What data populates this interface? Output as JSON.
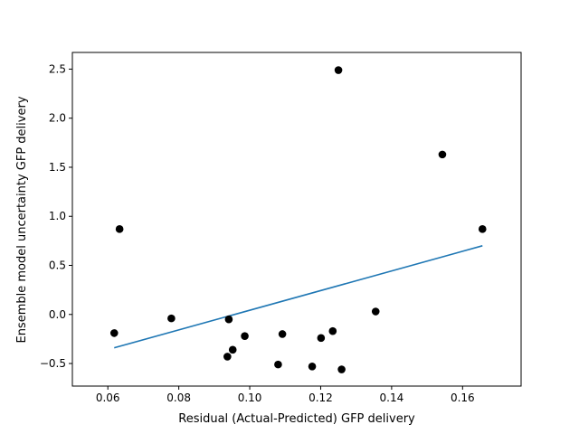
{
  "chart_data": {
    "type": "scatter",
    "title": "",
    "xlabel": "Residual (Actual-Predicted) GFP delivery",
    "ylabel": "Ensemble model uncertainty GFP delivery",
    "xlim": [
      0.05,
      0.1765
    ],
    "ylim": [
      -0.73,
      2.67
    ],
    "xticks": [
      "0.06",
      "0.08",
      "0.10",
      "0.12",
      "0.14",
      "0.16"
    ],
    "yticks": [
      "−0.5",
      "0.0",
      "0.5",
      "1.0",
      "1.5",
      "2.0",
      "2.5"
    ],
    "grid": false,
    "legend": "none",
    "colors": {
      "points": "#000000",
      "line": "#1f77b4"
    },
    "points": [
      {
        "x": 0.0618,
        "y": -0.19
      },
      {
        "x": 0.0633,
        "y": 0.87
      },
      {
        "x": 0.0779,
        "y": -0.04
      },
      {
        "x": 0.0937,
        "y": -0.43
      },
      {
        "x": 0.0941,
        "y": -0.05
      },
      {
        "x": 0.0952,
        "y": -0.36
      },
      {
        "x": 0.0986,
        "y": -0.22
      },
      {
        "x": 0.108,
        "y": -0.51
      },
      {
        "x": 0.1092,
        "y": -0.2
      },
      {
        "x": 0.1176,
        "y": -0.53
      },
      {
        "x": 0.1201,
        "y": -0.24
      },
      {
        "x": 0.1234,
        "y": -0.17
      },
      {
        "x": 0.125,
        "y": 2.49
      },
      {
        "x": 0.1259,
        "y": -0.56
      },
      {
        "x": 0.1355,
        "y": 0.03
      },
      {
        "x": 0.1543,
        "y": 1.63
      },
      {
        "x": 0.1656,
        "y": 0.87
      }
    ],
    "fit_line": [
      {
        "x": 0.0618,
        "y": -0.34
      },
      {
        "x": 0.1656,
        "y": 0.7
      }
    ]
  }
}
